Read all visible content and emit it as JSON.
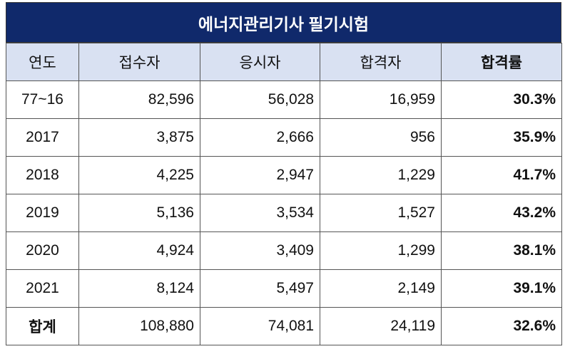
{
  "title": "에너지관리기사 필기시험",
  "table": {
    "header": [
      "연도",
      "접수자",
      "응시자",
      "합격자",
      "합격률"
    ],
    "rows": [
      [
        "77~16",
        "82,596",
        "56,028",
        "16,959",
        "30.3%"
      ],
      [
        "2017",
        "3,875",
        "2,666",
        "956",
        "35.9%"
      ],
      [
        "2018",
        "4,225",
        "2,947",
        "1,229",
        "41.7%"
      ],
      [
        "2019",
        "5,136",
        "3,534",
        "1,527",
        "43.2%"
      ],
      [
        "2020",
        "4,924",
        "3,409",
        "1,299",
        "38.1%"
      ],
      [
        "2021",
        "8,124",
        "5,497",
        "2,149",
        "39.1%"
      ]
    ],
    "total": [
      "합계",
      "108,880",
      "74,081",
      "24,119",
      "32.6%"
    ]
  }
}
